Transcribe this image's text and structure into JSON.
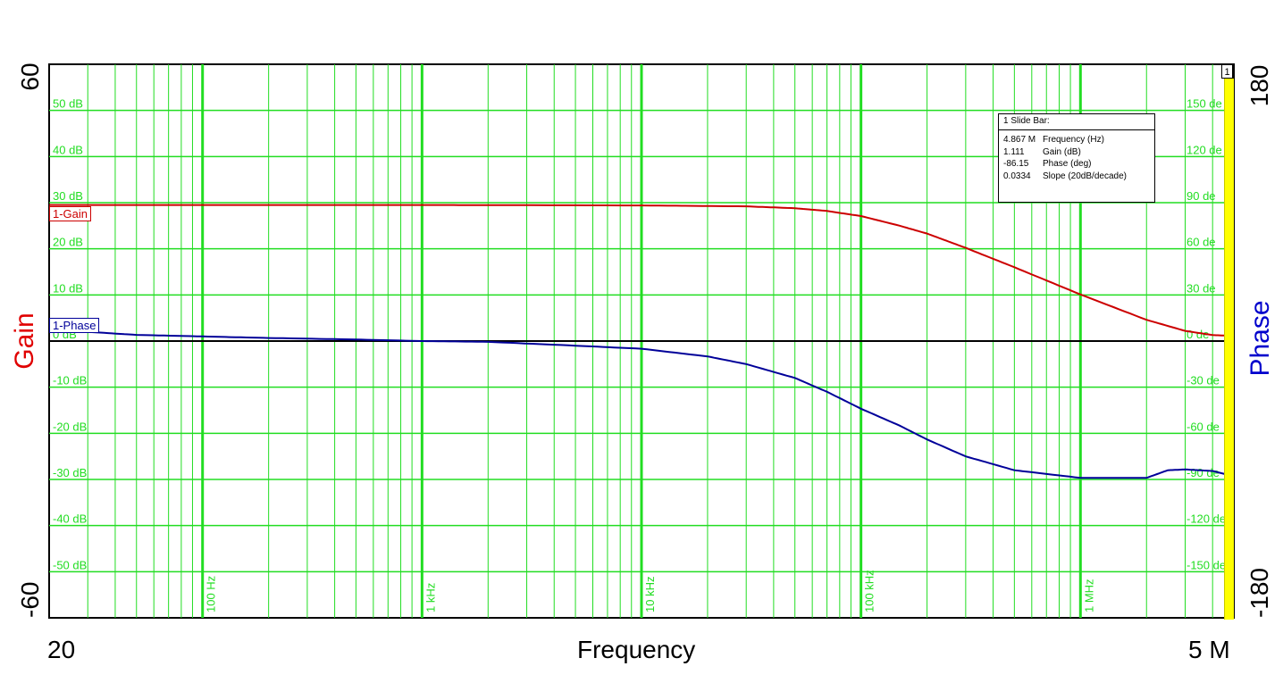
{
  "chart_data": {
    "type": "line",
    "xscale": "log",
    "xlim": [
      20,
      5000000
    ],
    "x_endpoint_labels": [
      "20",
      "5 M"
    ],
    "xlabel": "Frequency",
    "x_decade_labels": [
      {
        "x": 100,
        "label": "100 Hz"
      },
      {
        "x": 1000,
        "label": "1 kHz"
      },
      {
        "x": 10000,
        "label": "10 kHz"
      },
      {
        "x": 100000,
        "label": "100 kHz"
      },
      {
        "x": 1000000,
        "label": "1 MHz"
      }
    ],
    "left_axis": {
      "label": "Gain",
      "min_label": "-60",
      "max_label": "60",
      "ylim": [
        -60,
        60
      ],
      "color": "#e00000",
      "tick_labels": [
        "50 dB",
        "40 dB",
        "30 dB",
        "20 dB",
        "10 dB",
        "0 dB",
        "-10 dB",
        "-20 dB",
        "-30 dB",
        "-40 dB",
        "-50 dB"
      ],
      "tick_values": [
        50,
        40,
        30,
        20,
        10,
        0,
        -10,
        -20,
        -30,
        -40,
        -50
      ]
    },
    "right_axis": {
      "label": "Phase",
      "min_label": "-180",
      "max_label": "180",
      "ylim": [
        -180,
        180
      ],
      "color": "#0000cc",
      "tick_labels": [
        "150 de",
        "120 de",
        "90 de",
        "60 de",
        "30 de",
        "0 de",
        "-30 de",
        "-60 de",
        "-90 de",
        "-120 de",
        "-150 de"
      ],
      "tick_values": [
        150,
        120,
        90,
        60,
        30,
        0,
        -30,
        -60,
        -90,
        -120,
        -150
      ]
    },
    "grid": true,
    "grid_color": "#22dd22",
    "series": [
      {
        "name": "1-Gain",
        "axis": "left",
        "color": "#cc0000",
        "x": [
          20,
          100,
          1000,
          10000,
          30000,
          50000,
          70000,
          100000,
          150000,
          200000,
          300000,
          500000,
          1000000,
          2000000,
          3000000,
          4000000,
          5000000
        ],
        "y": [
          29.5,
          29.5,
          29.5,
          29.4,
          29.2,
          28.8,
          28.2,
          27.1,
          25.0,
          23.3,
          20.2,
          16.0,
          10.1,
          4.6,
          2.2,
          1.3,
          1.1
        ]
      },
      {
        "name": "1-Phase",
        "axis": "right",
        "color": "#000099",
        "x": [
          20,
          30,
          50,
          100,
          200,
          500,
          1000,
          2000,
          5000,
          10000,
          20000,
          30000,
          50000,
          70000,
          100000,
          150000,
          200000,
          300000,
          500000,
          1000000,
          2000000,
          2500000,
          3000000,
          4000000,
          5000000
        ],
        "y": [
          8,
          6,
          4,
          3,
          2,
          1,
          0,
          -0.5,
          -3,
          -5,
          -10,
          -15,
          -24,
          -33,
          -44,
          -55,
          -64,
          -75,
          -84,
          -89,
          -89,
          -84,
          -83.5,
          -84.5,
          -88
        ]
      }
    ],
    "legend_labels": [
      "1-Gain",
      "1-Phase"
    ]
  },
  "info_box": {
    "title": "1  Slide Bar:",
    "rows": [
      {
        "value": "4.867 M",
        "label": "Frequency (Hz)"
      },
      {
        "value": "1.111",
        "label": "Gain (dB)"
      },
      {
        "value": "-86.15",
        "label": "Phase (deg)"
      },
      {
        "value": "0.0334",
        "label": "Slope (20dB/decade)"
      }
    ]
  },
  "slide_bar_number": "1",
  "colors": {
    "gain": "#cc0000",
    "phase": "#000099",
    "grid": "#22dd22",
    "zero_line": "#000000",
    "slide_bar": "#ffff00"
  }
}
